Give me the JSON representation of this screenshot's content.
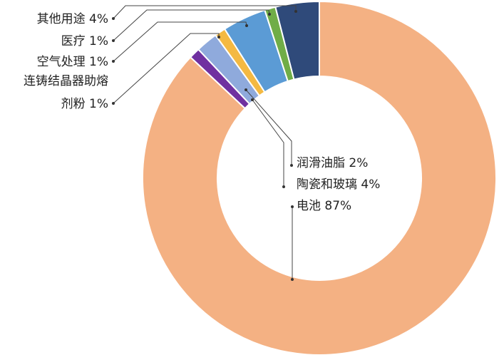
{
  "chart_data": {
    "type": "pie",
    "variant": "donut",
    "slices": [
      {
        "label": "电池 87%",
        "value": 87,
        "color": "#F4B183"
      },
      {
        "label": "连铸结晶器助熔剂粉 1%",
        "value": 1,
        "color": "#7030A0"
      },
      {
        "label": "润滑油脂 2%",
        "value": 2,
        "color": "#8FAADC"
      },
      {
        "label": "空气处理 1%",
        "value": 1,
        "color": "#F4B942"
      },
      {
        "label": "陶瓷和玻璃 4%",
        "value": 4,
        "color": "#5B9BD5"
      },
      {
        "label": "医疗 1%",
        "value": 1,
        "color": "#70AD47"
      },
      {
        "label": "其他用途 4%",
        "value": 4,
        "color": "#2F4A7A"
      }
    ],
    "label_lines": {
      "batteries": "电池 87%",
      "flux_line1": "连铸结晶器助熔",
      "flux_line2": "剂粉 1%",
      "grease": "润滑油脂 2%",
      "air": "空气处理 1%",
      "ceramics": "陶瓷和玻璃 4%",
      "medical": "医疗 1%",
      "other": "其他用途 4%"
    }
  }
}
